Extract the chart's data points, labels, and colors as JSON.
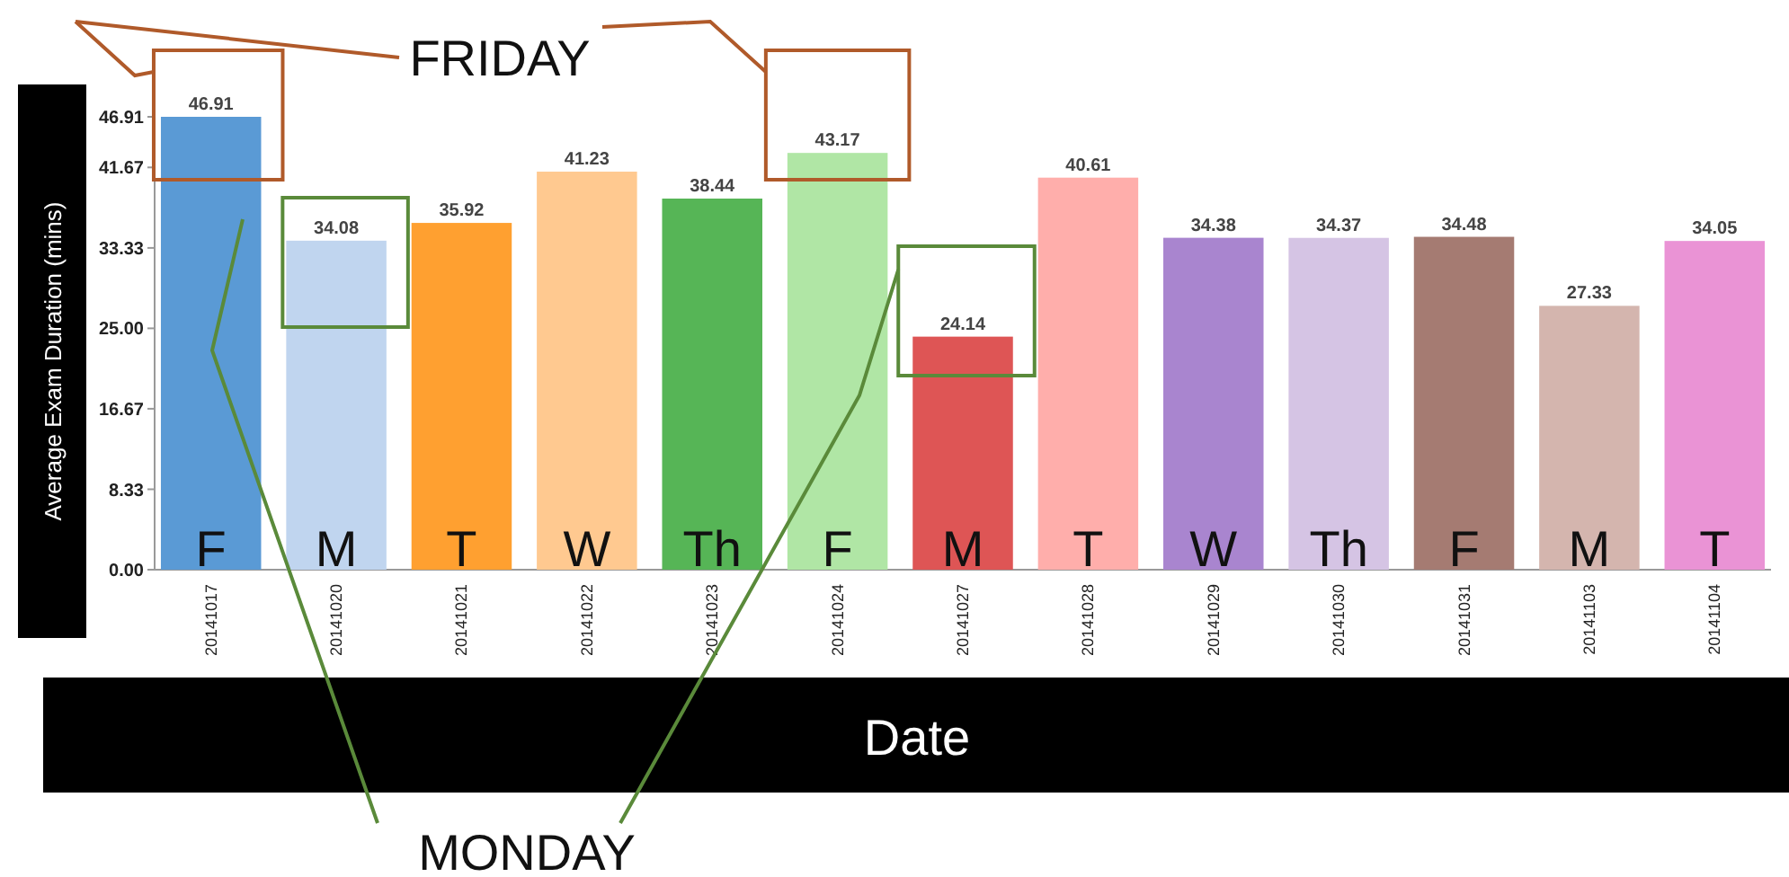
{
  "chart_data": {
    "type": "bar",
    "xlabel": "Date",
    "ylabel": "Average Exam Duration (mins)",
    "categories": [
      "20141017",
      "20141020",
      "20141021",
      "20141022",
      "20141023",
      "20141024",
      "20141027",
      "20141028",
      "20141029",
      "20141030",
      "20141031",
      "20141103",
      "20141104"
    ],
    "values": [
      46.91,
      34.08,
      35.92,
      41.23,
      38.44,
      43.17,
      24.14,
      40.61,
      34.38,
      34.37,
      34.48,
      27.33,
      34.05
    ],
    "colors": [
      "#5a9ad5",
      "#c0d5ef",
      "#ffa030",
      "#ffc990",
      "#56b556",
      "#b0e6a5",
      "#de5555",
      "#ffaeab",
      "#a985cf",
      "#d5c4e4",
      "#a57b72",
      "#d4b5ae",
      "#ea93d5"
    ],
    "ylim": [
      0,
      46.91
    ],
    "yticks": [
      {
        "value": 0,
        "label": "0.00"
      },
      8.33,
      16.67,
      {
        "value": 25,
        "label": "25.00"
      },
      33.33,
      41.67,
      46.91
    ],
    "data_labels": true,
    "annotations": [
      "FRIDAY",
      "MONDAY",
      {
        "text": "F",
        "x": "20141017",
        "y": 0
      },
      {
        "text": "M",
        "x": "20141020",
        "y": 0
      },
      {
        "text": "T",
        "x": "20141021",
        "y": 0
      },
      {
        "text": "W",
        "x": "20141022",
        "y": 0
      },
      {
        "text": "Th",
        "x": "20141023",
        "y": 0
      },
      {
        "text": "F",
        "x": "20141024",
        "y": 0
      },
      {
        "text": "M",
        "x": "20141027",
        "y": 0
      },
      {
        "text": "T",
        "x": "20141028",
        "y": 0
      },
      {
        "text": "W",
        "x": "20141029",
        "y": 0
      },
      {
        "text": "Th",
        "x": "20141030",
        "y": 0
      },
      {
        "text": "F",
        "x": "20141031",
        "y": 0
      },
      {
        "text": "M",
        "x": "20141103",
        "y": 0
      },
      {
        "text": "T",
        "x": "20141104",
        "y": 0
      }
    ]
  }
}
